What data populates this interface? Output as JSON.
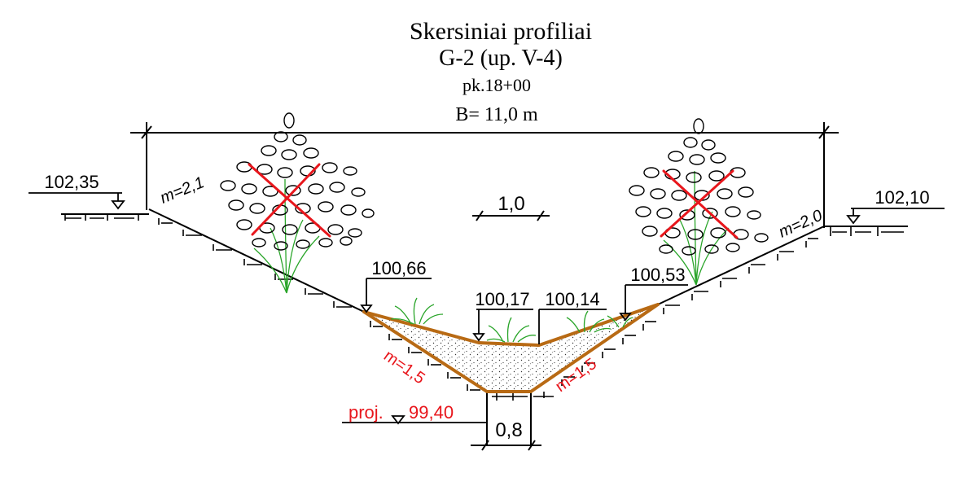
{
  "title": "Skersiniai profiliai",
  "subtitle": "G-2 (up. V-4)",
  "picket": "pk.18+00",
  "width_label": "B= 11,0 m",
  "scale_label": "1,0",
  "bottom_width_label": "0,8",
  "elevations": {
    "left_bank": "102,35",
    "right_bank": "102,10",
    "left_edge": "100,66",
    "mid_left": "100,17",
    "mid_right": "100,14",
    "right_edge": "100,53",
    "design_prefix": "proj.",
    "design_bottom": "99,40"
  },
  "slopes": {
    "left_upper": "m=2,1",
    "right_upper": "m=2,0",
    "left_lower": "m=1,5",
    "right_lower": "m=1,5"
  },
  "colors": {
    "line": "#000000",
    "sediment_line": "#b86a14",
    "design_text": "#e8161c",
    "cross_mark": "#e8161c",
    "vegetation": "#2aa52a"
  },
  "icons": [
    "tree-removal-left",
    "tree-removal-right",
    "grass-tuft"
  ]
}
